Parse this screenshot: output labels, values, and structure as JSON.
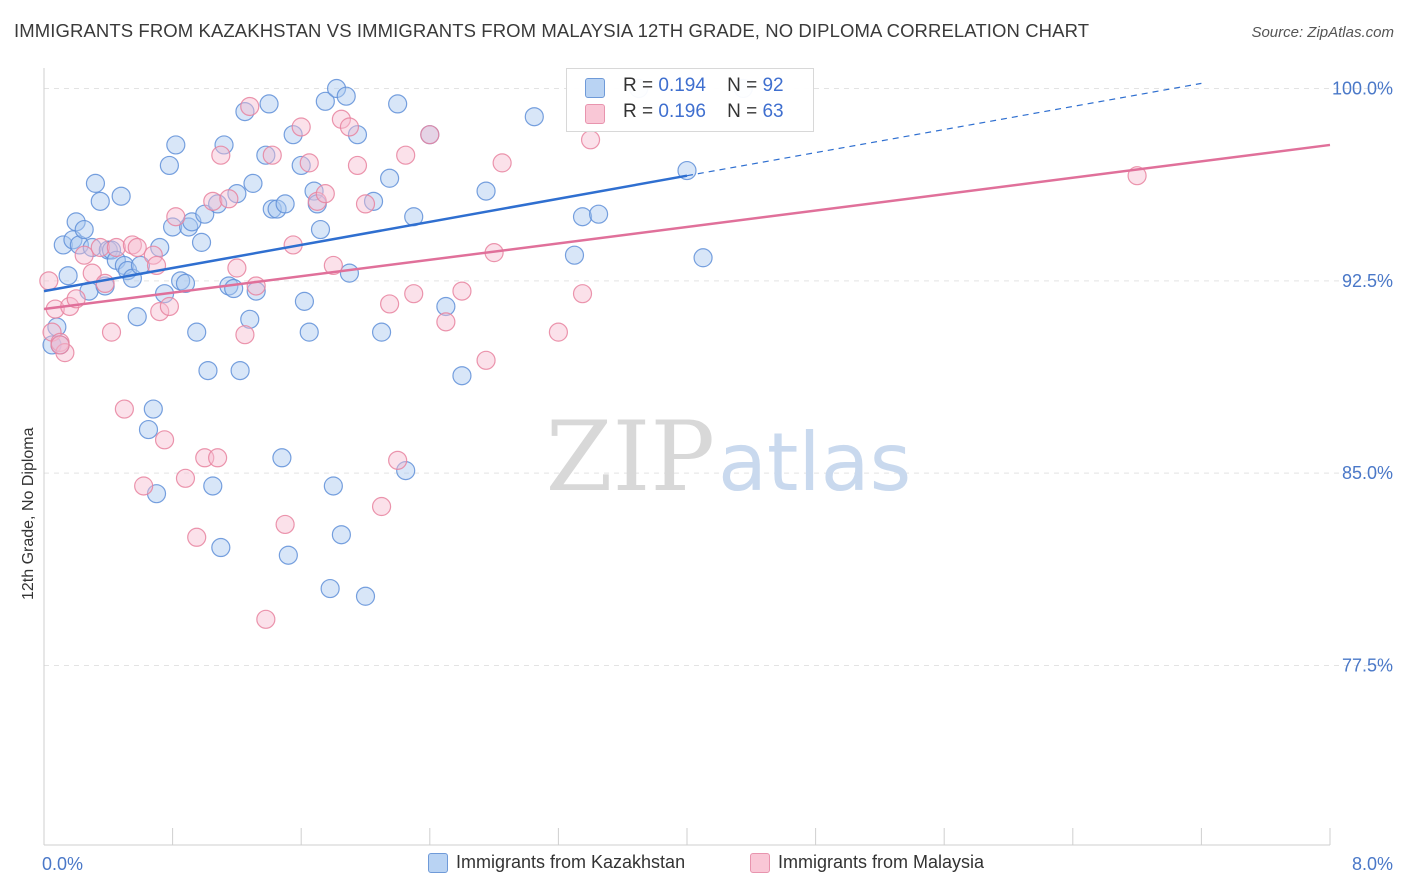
{
  "title": "IMMIGRANTS FROM KAZAKHSTAN VS IMMIGRANTS FROM MALAYSIA 12TH GRADE, NO DIPLOMA CORRELATION CHART",
  "source": "Source: ZipAtlas.com",
  "watermark": "ZIPatlas",
  "legend": {
    "rows": [
      {
        "r_label": "R =",
        "r_value": "0.194",
        "n_label": "N =",
        "n_value": "92"
      },
      {
        "r_label": "R =",
        "r_value": "0.196",
        "n_label": "N =",
        "n_value": "63"
      }
    ]
  },
  "colors": {
    "kazakhstan_fill": "#a9c8f0",
    "kazakhstan_stroke": "#5f8fd8",
    "kazakhstan_line": "#2f6fd0",
    "malaysia_fill": "#f7bdd0",
    "malaysia_stroke": "#e8829f",
    "malaysia_line": "#e0709a",
    "tick_label": "#4a78c8",
    "grid": "#e3e3e3"
  },
  "chart_data": {
    "type": "scatter",
    "title": "IMMIGRANTS FROM KAZAKHSTAN VS IMMIGRANTS FROM MALAYSIA 12TH GRADE, NO DIPLOMA CORRELATION CHART",
    "xlabel": "",
    "ylabel": "12th Grade, No Diploma",
    "xlim": [
      0,
      8
    ],
    "ylim": [
      70.5,
      100.8
    ],
    "x_ticks": [
      {
        "value": 0,
        "label": "0.0%"
      },
      {
        "value": 8,
        "label": "8.0%"
      }
    ],
    "y_ticks": [
      {
        "value": 100,
        "label": "100.0%"
      },
      {
        "value": 92.5,
        "label": "92.5%"
      },
      {
        "value": 85,
        "label": "85.0%"
      },
      {
        "value": 77.5,
        "label": "77.5%"
      }
    ],
    "x_minor_ticks": [
      0.8,
      1.6,
      2.4,
      3.2,
      4.0,
      4.8,
      5.6,
      6.4,
      7.2,
      8.0
    ],
    "grid": true,
    "legend_position": "top-center",
    "series": [
      {
        "name": "Immigrants from Kazakhstan",
        "r": 0.194,
        "n": 92,
        "trend": {
          "x0": 0,
          "y0": 92.1,
          "x1": 4.0,
          "y1": 96.6,
          "dashed_to": {
            "x": 7.2,
            "y": 100.2
          }
        },
        "points": [
          [
            0.05,
            90.0
          ],
          [
            0.08,
            90.7
          ],
          [
            0.1,
            90.0
          ],
          [
            0.12,
            93.9
          ],
          [
            0.15,
            92.7
          ],
          [
            0.18,
            94.1
          ],
          [
            0.2,
            94.8
          ],
          [
            0.22,
            93.9
          ],
          [
            0.25,
            94.5
          ],
          [
            0.28,
            92.1
          ],
          [
            0.3,
            93.8
          ],
          [
            0.32,
            96.3
          ],
          [
            0.35,
            95.6
          ],
          [
            0.38,
            92.3
          ],
          [
            0.4,
            93.7
          ],
          [
            0.42,
            93.7
          ],
          [
            0.45,
            93.3
          ],
          [
            0.48,
            95.8
          ],
          [
            0.5,
            93.1
          ],
          [
            0.52,
            92.9
          ],
          [
            0.55,
            92.6
          ],
          [
            0.58,
            91.1
          ],
          [
            0.6,
            93.1
          ],
          [
            0.65,
            86.7
          ],
          [
            0.68,
            87.5
          ],
          [
            0.7,
            84.2
          ],
          [
            0.72,
            93.8
          ],
          [
            0.75,
            92.0
          ],
          [
            0.78,
            97.0
          ],
          [
            0.8,
            94.6
          ],
          [
            0.82,
            97.8
          ],
          [
            0.85,
            92.5
          ],
          [
            0.88,
            92.4
          ],
          [
            0.9,
            94.6
          ],
          [
            0.92,
            94.8
          ],
          [
            0.95,
            90.5
          ],
          [
            0.98,
            94.0
          ],
          [
            1.0,
            95.1
          ],
          [
            1.02,
            89.0
          ],
          [
            1.05,
            84.5
          ],
          [
            1.08,
            95.5
          ],
          [
            1.1,
            82.1
          ],
          [
            1.12,
            97.8
          ],
          [
            1.15,
            92.3
          ],
          [
            1.18,
            92.2
          ],
          [
            1.2,
            95.9
          ],
          [
            1.22,
            89.0
          ],
          [
            1.25,
            99.1
          ],
          [
            1.28,
            91.0
          ],
          [
            1.3,
            96.3
          ],
          [
            1.32,
            92.1
          ],
          [
            1.38,
            97.4
          ],
          [
            1.4,
            99.4
          ],
          [
            1.42,
            95.3
          ],
          [
            1.45,
            95.3
          ],
          [
            1.48,
            85.6
          ],
          [
            1.5,
            95.5
          ],
          [
            1.52,
            81.8
          ],
          [
            1.55,
            98.2
          ],
          [
            1.6,
            97.0
          ],
          [
            1.62,
            91.7
          ],
          [
            1.65,
            90.5
          ],
          [
            1.68,
            96.0
          ],
          [
            1.7,
            95.5
          ],
          [
            1.72,
            94.5
          ],
          [
            1.75,
            99.5
          ],
          [
            1.78,
            80.5
          ],
          [
            1.8,
            84.5
          ],
          [
            1.82,
            100.0
          ],
          [
            1.85,
            82.6
          ],
          [
            1.88,
            99.7
          ],
          [
            1.9,
            92.8
          ],
          [
            1.95,
            98.2
          ],
          [
            2.0,
            80.2
          ],
          [
            2.05,
            95.6
          ],
          [
            2.1,
            90.5
          ],
          [
            2.15,
            96.5
          ],
          [
            2.2,
            99.4
          ],
          [
            2.25,
            85.1
          ],
          [
            2.3,
            95.0
          ],
          [
            2.4,
            98.2
          ],
          [
            2.5,
            91.5
          ],
          [
            2.6,
            88.8
          ],
          [
            2.75,
            96.0
          ],
          [
            3.05,
            98.9
          ],
          [
            3.3,
            93.5
          ],
          [
            3.35,
            95.0
          ],
          [
            3.45,
            95.1
          ],
          [
            3.7,
            100.0
          ],
          [
            4.0,
            96.8
          ],
          [
            4.1,
            93.4
          ],
          [
            4.35,
            100.0
          ]
        ]
      },
      {
        "name": "Immigrants from Malaysia",
        "r": 0.196,
        "n": 63,
        "trend": {
          "x0": 0,
          "y0": 91.4,
          "x1": 8.0,
          "y1": 97.8
        },
        "points": [
          [
            0.03,
            92.5
          ],
          [
            0.05,
            90.5
          ],
          [
            0.07,
            91.4
          ],
          [
            0.1,
            90.1
          ],
          [
            0.13,
            89.7
          ],
          [
            0.16,
            91.5
          ],
          [
            0.2,
            91.8
          ],
          [
            0.25,
            93.5
          ],
          [
            0.3,
            92.8
          ],
          [
            0.35,
            93.8
          ],
          [
            0.38,
            92.4
          ],
          [
            0.42,
            90.5
          ],
          [
            0.45,
            93.8
          ],
          [
            0.5,
            87.5
          ],
          [
            0.55,
            93.9
          ],
          [
            0.58,
            93.8
          ],
          [
            0.62,
            84.5
          ],
          [
            0.68,
            93.5
          ],
          [
            0.7,
            93.1
          ],
          [
            0.72,
            91.3
          ],
          [
            0.75,
            86.3
          ],
          [
            0.78,
            91.5
          ],
          [
            0.82,
            95.0
          ],
          [
            0.88,
            84.8
          ],
          [
            0.95,
            82.5
          ],
          [
            1.0,
            85.6
          ],
          [
            1.05,
            95.6
          ],
          [
            1.08,
            85.6
          ],
          [
            1.1,
            97.4
          ],
          [
            1.15,
            95.7
          ],
          [
            1.2,
            93.0
          ],
          [
            1.25,
            90.4
          ],
          [
            1.28,
            99.3
          ],
          [
            1.32,
            92.3
          ],
          [
            1.38,
            79.3
          ],
          [
            1.42,
            97.4
          ],
          [
            1.5,
            83.0
          ],
          [
            1.55,
            93.9
          ],
          [
            1.6,
            98.5
          ],
          [
            1.65,
            97.1
          ],
          [
            1.7,
            95.6
          ],
          [
            1.75,
            95.9
          ],
          [
            1.8,
            93.1
          ],
          [
            1.85,
            98.8
          ],
          [
            1.9,
            98.5
          ],
          [
            1.95,
            97.0
          ],
          [
            2.0,
            95.5
          ],
          [
            2.1,
            83.7
          ],
          [
            2.15,
            91.6
          ],
          [
            2.2,
            85.5
          ],
          [
            2.25,
            97.4
          ],
          [
            2.3,
            92.0
          ],
          [
            2.4,
            98.2
          ],
          [
            2.5,
            90.9
          ],
          [
            2.6,
            92.1
          ],
          [
            2.75,
            89.4
          ],
          [
            2.8,
            93.6
          ],
          [
            2.85,
            97.1
          ],
          [
            3.2,
            90.5
          ],
          [
            3.35,
            92.0
          ],
          [
            3.4,
            98.0
          ],
          [
            6.8,
            96.6
          ],
          [
            0.1,
            90.0
          ]
        ]
      }
    ]
  },
  "bottom_legend": [
    {
      "label": "Immigrants from Kazakhstan"
    },
    {
      "label": "Immigrants from Malaysia"
    }
  ]
}
